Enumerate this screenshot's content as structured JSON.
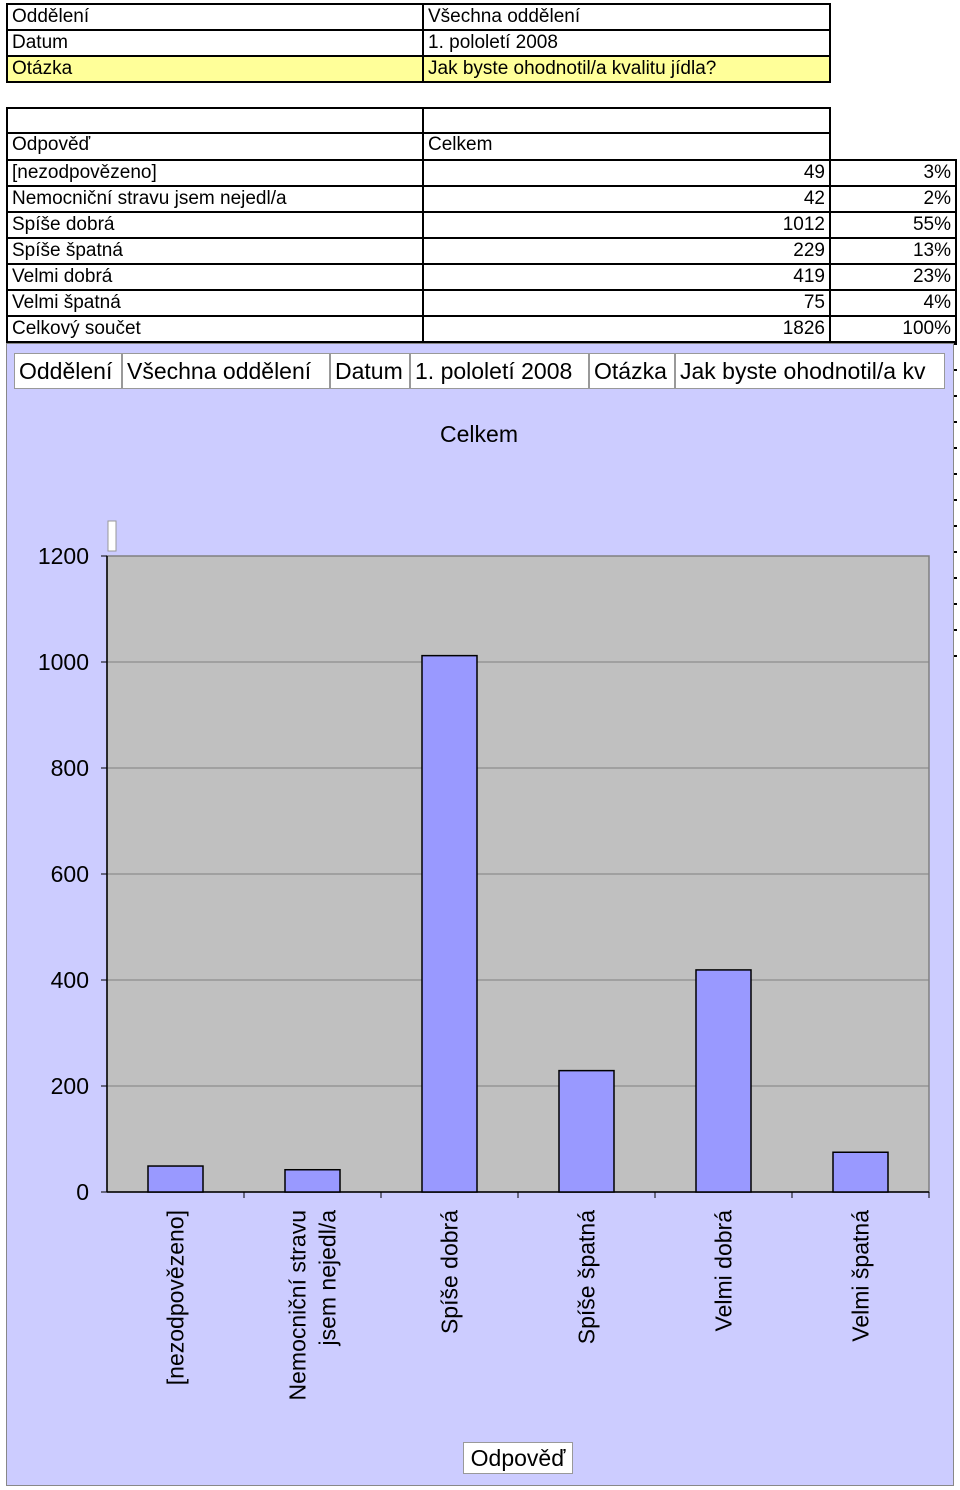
{
  "header": {
    "rows": [
      {
        "label": "Oddělení",
        "value": "Všechna oddělení",
        "highlight": false
      },
      {
        "label": "Datum",
        "value": "1. pololetí 2008",
        "highlight": false
      },
      {
        "label": "Otázka",
        "value": "Jak byste ohodnotil/a kvalitu jídla?",
        "highlight": true
      }
    ]
  },
  "table": {
    "col_answer": "Odpověď",
    "col_total": "Celkem",
    "rows": [
      {
        "label": "[nezodpovězeno]",
        "count": "49",
        "pct": "3%"
      },
      {
        "label": "Nemocniční stravu jsem nejedl/a",
        "count": "42",
        "pct": "2%"
      },
      {
        "label": "Spíše dobrá",
        "count": "1012",
        "pct": "55%"
      },
      {
        "label": "Spíše špatná",
        "count": "229",
        "pct": "13%"
      },
      {
        "label": "Velmi dobrá",
        "count": "419",
        "pct": "23%"
      },
      {
        "label": "Velmi špatná",
        "count": "75",
        "pct": "4%"
      }
    ],
    "total": {
      "label": "Celkový součet",
      "count": "1826",
      "pct": "100%"
    }
  },
  "pivot_fields": [
    "Oddělení",
    "Všechna oddělení",
    "Datum",
    "1. pololetí 2008",
    "Otázka",
    "Jak byste ohodnotil/a kv"
  ],
  "colors": {
    "highlight": "#ffff99",
    "chart_bg": "#ccccff",
    "plot_bg": "#c0c0c0",
    "bar": "#9999ff"
  },
  "chart_data": {
    "type": "bar",
    "title": "Celkem",
    "xlabel": "Odpověď",
    "ylabel": "",
    "categories": [
      "[nezodpovězeno]",
      "Nemocniční stravu jsem nejedl/a",
      "Spíše dobrá",
      "Spíše špatná",
      "Velmi dobrá",
      "Velmi špatná"
    ],
    "category_lines": [
      [
        "[nezodpovězeno]"
      ],
      [
        "Nemocniční stravu",
        "jsem nejedl/a"
      ],
      [
        "Spíše dobrá"
      ],
      [
        "Spíše špatná"
      ],
      [
        "Velmi dobrá"
      ],
      [
        "Velmi špatná"
      ]
    ],
    "values": [
      49,
      42,
      1012,
      229,
      419,
      75
    ],
    "ylim": [
      0,
      1200
    ],
    "yticks": [
      0,
      200,
      400,
      600,
      800,
      1000,
      1200
    ],
    "grid": true,
    "legend": "none"
  }
}
